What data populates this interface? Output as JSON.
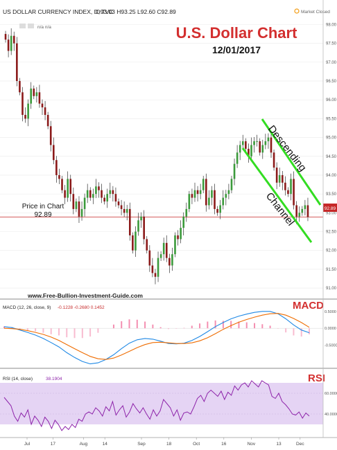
{
  "header": {
    "symbol_title": "US DOLLAR CURRENCY INDEX, D, TVC",
    "ohlc": "O93.03  H93.25  L92.60  C92.89",
    "market_status": "Market Closed",
    "indicator_flags": "n/a  n/a"
  },
  "chart_data": [
    {
      "type": "candlestick",
      "title": "U.S. Dollar Chart",
      "subtitle": "12/01/2017",
      "y_ticks": [
        "98.00",
        "97.50",
        "97.00",
        "96.50",
        "96.00",
        "95.50",
        "95.00",
        "94.50",
        "94.00",
        "93.50",
        "93.00",
        "92.50",
        "92.00",
        "91.50",
        "91.00"
      ],
      "ylim": [
        90.8,
        98.1
      ],
      "x_ticks": [
        "Jul",
        "17",
        "Aug",
        "14",
        "Sep",
        "18",
        "Oct",
        "16",
        "Nov",
        "13",
        "Dec"
      ],
      "price_marker": "92.89",
      "price_line": 92.89,
      "annotations": {
        "price_label": "Price in Chart",
        "price_value": "92.89",
        "channel_top": "Descending",
        "channel_bottom": "Channel",
        "website": "www.Free-Bullion-Investment-Guide.com"
      },
      "closes": [
        97.6,
        97.3,
        97.7,
        97.5,
        96.5,
        96.2,
        95.6,
        95.5,
        95.9,
        96.3,
        96.1,
        96.2,
        95.9,
        95.8,
        95.6,
        95.3,
        94.8,
        94.4,
        94.0,
        93.9,
        93.6,
        93.4,
        93.9,
        93.5,
        93.1,
        93.3,
        92.9,
        93.1,
        93.4,
        93.6,
        93.4,
        93.5,
        93.7,
        93.6,
        93.4,
        93.3,
        93.5,
        93.6,
        93.5,
        93.3,
        93.2,
        93.1,
        93.0,
        93.1,
        92.4,
        92.0,
        92.5,
        92.8,
        92.9,
        92.3,
        92.0,
        91.6,
        91.4,
        91.3,
        91.8,
        91.9,
        92.2,
        91.8,
        91.6,
        91.9,
        92.4,
        92.3,
        92.6,
        92.9,
        93.1,
        93.5,
        93.4,
        93.6,
        93.5,
        93.6,
        93.9,
        93.2,
        93.4,
        93.6,
        93.1,
        93.0,
        93.2,
        93.4,
        93.5,
        93.6,
        93.9,
        94.3,
        94.6,
        94.8,
        94.9,
        94.7,
        94.5,
        94.8,
        94.9,
        94.9,
        94.6,
        94.8,
        94.9,
        95.0,
        94.6,
        94.2,
        93.8,
        94.0,
        93.8,
        93.6,
        93.5,
        93.9,
        93.2,
        92.9,
        93.0,
        93.1,
        93.2,
        92.89
      ]
    },
    {
      "type": "line",
      "title": "MACD (12, 26, close, 9)",
      "values_label": "-0.1228  -0.2680  0.1452",
      "y_ticks": [
        "0.5000",
        "0.0000",
        "-0.5000"
      ],
      "ylim": [
        -1.1,
        0.7
      ],
      "series": [
        {
          "name": "MACD",
          "color": "#1e88e5",
          "values": [
            0.05,
            0.02,
            -0.05,
            -0.12,
            -0.2,
            -0.3,
            -0.42,
            -0.55,
            -0.72,
            -0.86,
            -0.98,
            -1.05,
            -1.02,
            -0.92,
            -0.78,
            -0.6,
            -0.44,
            -0.34,
            -0.3,
            -0.32,
            -0.38,
            -0.45,
            -0.46,
            -0.44,
            -0.36,
            -0.24,
            -0.1,
            0.05,
            0.17,
            0.28,
            0.36,
            0.42,
            0.47,
            0.5,
            0.5,
            0.43,
            0.28,
            0.1,
            -0.05,
            -0.13
          ]
        },
        {
          "name": "Signal",
          "color": "#ef6c00",
          "values": [
            0.0,
            -0.01,
            -0.03,
            -0.07,
            -0.12,
            -0.18,
            -0.26,
            -0.36,
            -0.48,
            -0.6,
            -0.72,
            -0.83,
            -0.9,
            -0.92,
            -0.88,
            -0.79,
            -0.68,
            -0.57,
            -0.48,
            -0.42,
            -0.41,
            -0.43,
            -0.45,
            -0.45,
            -0.43,
            -0.37,
            -0.28,
            -0.16,
            -0.03,
            0.08,
            0.18,
            0.26,
            0.33,
            0.39,
            0.43,
            0.44,
            0.39,
            0.29,
            0.17,
            0.03
          ]
        }
      ],
      "annotation": "MACD"
    },
    {
      "type": "line",
      "title": "RSI (14, close)",
      "values_label": "38.1904",
      "y_ticks": [
        "60.0000",
        "40.0000"
      ],
      "ylim": [
        20,
        80
      ],
      "band": [
        30,
        70
      ],
      "series": [
        {
          "name": "RSI",
          "color": "#8e24aa",
          "values": [
            56,
            52,
            48,
            38,
            33,
            41,
            37,
            44,
            30,
            38,
            34,
            28,
            37,
            33,
            26,
            34,
            30,
            24,
            28,
            25,
            30,
            27,
            35,
            33,
            40,
            42,
            40,
            46,
            43,
            38,
            47,
            43,
            52,
            39,
            44,
            48,
            37,
            42,
            50,
            45,
            41,
            46,
            40,
            35,
            44,
            38,
            43,
            54,
            50,
            46,
            38,
            44,
            34,
            41,
            42,
            40,
            47,
            55,
            58,
            52,
            60,
            63,
            60,
            57,
            62,
            54,
            61,
            58,
            67,
            63,
            68,
            70,
            66,
            72,
            69,
            66,
            72,
            70,
            68,
            57,
            55,
            60,
            52,
            49,
            45,
            40,
            39,
            42,
            36,
            41,
            38
          ]
        }
      ],
      "annotation": "RSI"
    }
  ]
}
